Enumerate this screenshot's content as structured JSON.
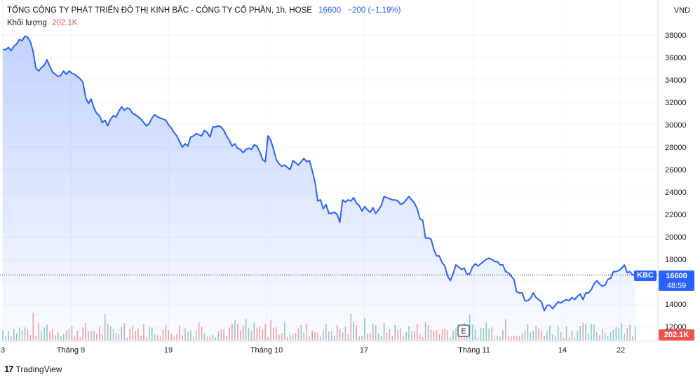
{
  "header": {
    "symbol_title": "TỔNG CÔNG TY PHÁT TRIỂN ĐÔ THỊ KINH BẮC - CÔNG TY CỔ PHẦN, 1h, HOSE",
    "last_price": "16600",
    "change": "−200 (−1.19%)",
    "volume_label": "Khối lượng",
    "volume_value": "202.1K",
    "currency": "VND"
  },
  "price_tag": {
    "ticker": "KBC",
    "price": "16600",
    "countdown": "48:59"
  },
  "volume_tag": "202.1K",
  "event_marker": "E",
  "branding": "TradingView",
  "colors": {
    "line": "#2962ff",
    "fill": "#2962ff",
    "up_volume": "#26a69a",
    "down_volume": "#ef5350",
    "grid": "#f0f3fa"
  },
  "chart_data": {
    "type": "area",
    "y_ticks": [
      "12000",
      "14000",
      "16000",
      "18000",
      "20000",
      "22000",
      "24000",
      "26000",
      "28000",
      "30000",
      "32000",
      "34000",
      "36000",
      "38000"
    ],
    "ylim": [
      11000,
      39400
    ],
    "x_ticks": [
      "3",
      "Tháng 9",
      "19",
      "Tháng 10",
      "17",
      "Tháng 11",
      "14",
      "22"
    ],
    "last_value": 16600,
    "price_series": [
      36700,
      36700,
      36900,
      36600,
      37000,
      37200,
      37600,
      37500,
      37900,
      37800,
      37400,
      36500,
      35000,
      34800,
      35100,
      35300,
      35800,
      35200,
      34700,
      34500,
      34300,
      34400,
      34800,
      34500,
      34800,
      34600,
      34500,
      34300,
      34100,
      33800,
      32400,
      31900,
      32300,
      31500,
      31000,
      30800,
      30200,
      30400,
      29900,
      30500,
      30800,
      30700,
      31200,
      31600,
      31300,
      31500,
      31400,
      31000,
      30900,
      30700,
      30500,
      30200,
      29900,
      30100,
      30600,
      30900,
      30700,
      30600,
      30500,
      30400,
      30000,
      29700,
      29300,
      29000,
      28500,
      28000,
      28300,
      28100,
      28900,
      29000,
      29200,
      29100,
      29000,
      29500,
      29300,
      28900,
      29800,
      29800,
      29900,
      29800,
      29500,
      29000,
      28600,
      28100,
      28300,
      27900,
      27800,
      27500,
      27800,
      27900,
      27800,
      28200,
      28100,
      27600,
      26900,
      26700,
      29000,
      28600,
      27800,
      26900,
      26500,
      26300,
      26400,
      26200,
      26000,
      26800,
      26600,
      26400,
      26700,
      27000,
      26700,
      26800,
      25900,
      24900,
      23200,
      23300,
      22500,
      22900,
      22100,
      22100,
      22200,
      22000,
      21300,
      23300,
      23100,
      23300,
      23200,
      23500,
      23000,
      22800,
      22300,
      22700,
      22400,
      22200,
      22600,
      22100,
      22400,
      22800,
      23600,
      23500,
      23400,
      23300,
      23300,
      23200,
      22900,
      23000,
      23300,
      23600,
      23300,
      23000,
      22500,
      21600,
      21500,
      19900,
      19900,
      19800,
      18900,
      18300,
      18300,
      17700,
      17400,
      16500,
      16100,
      16700,
      17500,
      17300,
      17100,
      17200,
      16700,
      16700,
      17300,
      17600,
      17400,
      17600,
      17800,
      18000,
      18100,
      18000,
      17800,
      17800,
      17500,
      17500,
      16900,
      16800,
      16500,
      16200,
      15100,
      15000,
      15000,
      14300,
      14300,
      14500,
      15000,
      14600,
      14400,
      14200,
      13400,
      13900,
      13900,
      13600,
      13900,
      14200,
      14100,
      14300,
      14400,
      14300,
      14600,
      14400,
      14700,
      14900,
      14400,
      15000,
      15000,
      15300,
      15800,
      16100,
      15800,
      15600,
      15700,
      16200,
      16300,
      16900,
      16900,
      17000,
      17200,
      17500,
      16800,
      16900,
      16600,
      16600
    ]
  }
}
